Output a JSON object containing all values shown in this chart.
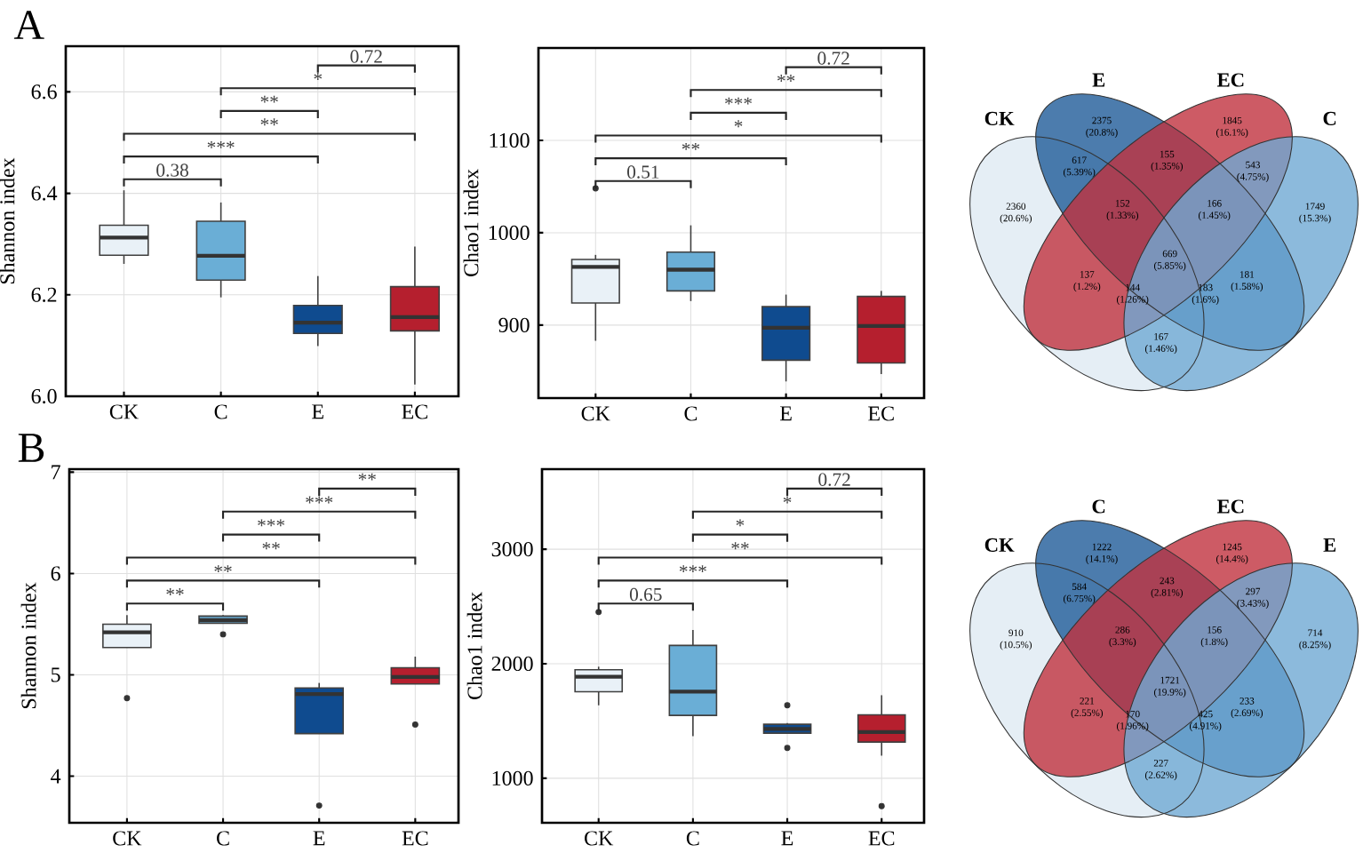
{
  "chart_data": [
    {
      "type": "box",
      "title": "A",
      "ylabel": "Shannon index",
      "categories": [
        "CK",
        "C",
        "E",
        "EC"
      ],
      "colors": [
        "#e9f1f7",
        "#6aaed6",
        "#0f4b8f",
        "#b51f2e"
      ],
      "ylim": [
        6.0,
        6.69
      ],
      "yticks": [
        {
          "value": 6.0,
          "label": "6.0"
        },
        6.2,
        6.4,
        6.6
      ],
      "grid": true,
      "boxes": [
        {
          "low": 6.261,
          "q1": 6.278,
          "median": 6.313,
          "q3": 6.337,
          "high": 6.406
        },
        {
          "low": 6.195,
          "q1": 6.229,
          "median": 6.277,
          "q3": 6.345,
          "high": 6.382
        },
        {
          "low": 6.099,
          "q1": 6.124,
          "median": 6.145,
          "q3": 6.179,
          "high": 6.237
        },
        {
          "low": 6.023,
          "q1": 6.129,
          "median": 6.156,
          "q3": 6.216,
          "high": 6.295
        }
      ],
      "annotations": [
        "0.38",
        "***",
        "**",
        "**",
        "*",
        "0.72"
      ]
    },
    {
      "type": "box",
      "ylabel": "Chao1 index",
      "categories": [
        "CK",
        "C",
        "E",
        "EC"
      ],
      "colors": [
        "#e9f1f7",
        "#6aaed6",
        "#0f4b8f",
        "#b51f2e"
      ],
      "ylim": [
        821,
        1200
      ],
      "yticks": [
        900,
        1000,
        1100
      ],
      "grid": true,
      "boxes": [
        {
          "low": 883,
          "q1": 924,
          "median": 963,
          "q3": 971,
          "high": 976,
          "outliers": [
            1048
          ]
        },
        {
          "low": 926,
          "q1": 937,
          "median": 960,
          "q3": 979,
          "high": 1008
        },
        {
          "low": 839,
          "q1": 862,
          "median": 897,
          "q3": 920,
          "high": 933
        },
        {
          "low": 847,
          "q1": 859,
          "median": 899,
          "q3": 931,
          "high": 937
        }
      ],
      "annotations": [
        "0.51",
        "**",
        "*",
        "***",
        "**",
        "0.72"
      ]
    },
    {
      "type": "other",
      "categories": [
        "CK",
        "E",
        "EC",
        "C"
      ],
      "colors": [
        "#dfeaf2",
        "#1f5b99",
        "#c0323f",
        "#6fa9d3"
      ],
      "annotations": [
        "2360 (20.6%)",
        "2375 (20.8%)",
        "1845 (16.1%)",
        "1749 (15.3%)",
        "617 (5.39%)",
        "155 (1.35%)",
        "543 (4.75%)",
        "152 (1.33%)",
        "166 (1.45%)",
        "669 (5.85%)",
        "137 (1.2%)",
        "181 (1.58%)",
        "144 (1.26%)",
        "183 (1.6%)",
        "167 (1.46%)"
      ]
    },
    {
      "type": "box",
      "title": "B",
      "ylabel": "Shannon index",
      "categories": [
        "CK",
        "C",
        "E",
        "EC"
      ],
      "colors": [
        "#e9f1f7",
        "#6aaed6",
        "#0f4b8f",
        "#b51f2e"
      ],
      "ylim": [
        3.54,
        7.03
      ],
      "yticks": [
        4,
        5,
        6,
        7
      ],
      "grid": true,
      "boxes": [
        {
          "low": 5.27,
          "q1": 5.27,
          "median": 5.42,
          "q3": 5.5,
          "high": 5.59,
          "outliers": [
            4.77
          ]
        },
        {
          "low": 5.51,
          "q1": 5.51,
          "median": 5.54,
          "q3": 5.58,
          "high": 5.59,
          "outliers": [
            5.4
          ]
        },
        {
          "low": 4.42,
          "q1": 4.42,
          "median": 4.81,
          "q3": 4.87,
          "high": 4.92,
          "outliers": [
            3.71
          ]
        },
        {
          "low": 4.91,
          "q1": 4.91,
          "median": 4.98,
          "q3": 5.07,
          "high": 5.18,
          "outliers": [
            4.51
          ]
        }
      ],
      "annotations": [
        "**",
        "**",
        "**",
        "***",
        "***",
        "**"
      ]
    },
    {
      "type": "box",
      "ylabel": "Chao1 index",
      "categories": [
        "CK",
        "C",
        "E",
        "EC"
      ],
      "colors": [
        "#e9f1f7",
        "#6aaed6",
        "#0f4b8f",
        "#b51f2e"
      ],
      "ylim": [
        611,
        3699
      ],
      "yticks": [
        1000,
        2000,
        3000
      ],
      "grid": true,
      "boxes": [
        {
          "low": 1637,
          "q1": 1756,
          "median": 1886,
          "q3": 1948,
          "high": 1974,
          "outliers": [
            2451
          ]
        },
        {
          "low": 1368,
          "q1": 1549,
          "median": 1756,
          "q3": 2160,
          "high": 2295
        },
        {
          "low": 1394,
          "q1": 1394,
          "median": 1430,
          "q3": 1471,
          "high": 1482,
          "outliers": [
            1637,
            1264
          ]
        },
        {
          "low": 1197,
          "q1": 1316,
          "median": 1404,
          "q3": 1554,
          "high": 1725,
          "outliers": [
            757
          ]
        }
      ],
      "annotations": [
        "0.65",
        "***",
        "**",
        "*",
        "*",
        "0.72"
      ]
    },
    {
      "type": "other",
      "categories": [
        "CK",
        "C",
        "EC",
        "E"
      ],
      "colors": [
        "#dfeaf2",
        "#1f5b99",
        "#c0323f",
        "#6fa9d3"
      ],
      "annotations": [
        "910 (10.5%)",
        "1222 (14.1%)",
        "1245 (14.4%)",
        "714 (8.25%)",
        "584 (6.75%)",
        "243 (2.81%)",
        "297 (3.43%)",
        "286 (3.3%)",
        "156 (1.8%)",
        "1721 (19.9%)",
        "221 (2.55%)",
        "233 (2.69%)",
        "170 (1.96%)",
        "425 (4.91%)",
        "227 (2.62%)"
      ]
    }
  ]
}
